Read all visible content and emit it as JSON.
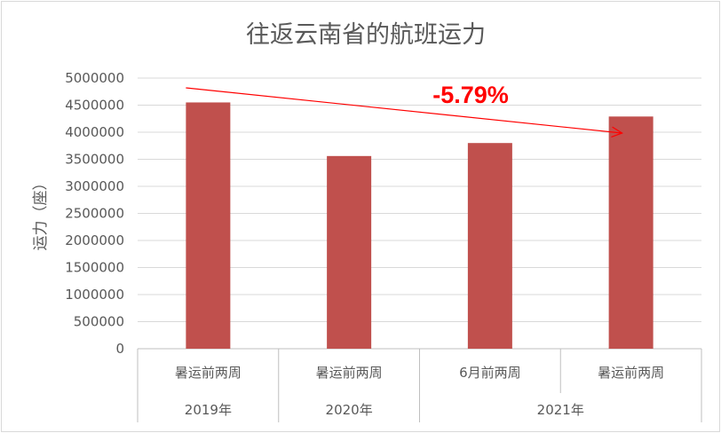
{
  "chart_data": {
    "type": "bar",
    "title": "往返云南省的航班运力",
    "ylabel": "运力（座）",
    "ylim": [
      0,
      5000000
    ],
    "yticks": [
      "0",
      "500000",
      "1000000",
      "1500000",
      "2000000",
      "2500000",
      "3000000",
      "3500000",
      "4000000",
      "4500000",
      "5000000"
    ],
    "categories": [
      "暑运前两周",
      "暑运前两周",
      "6月前两周",
      "暑运前两周"
    ],
    "groups": [
      {
        "label": "2019年",
        "span": 1
      },
      {
        "label": "2020年",
        "span": 1
      },
      {
        "label": "2021年",
        "span": 2
      }
    ],
    "values": [
      4550000,
      3560000,
      3800000,
      4290000
    ],
    "bar_color": "#c0504d",
    "grid": true,
    "annotation": {
      "text": "-5.79%",
      "color": "#ff0000",
      "arrow_from": 0,
      "arrow_to": 3
    }
  }
}
